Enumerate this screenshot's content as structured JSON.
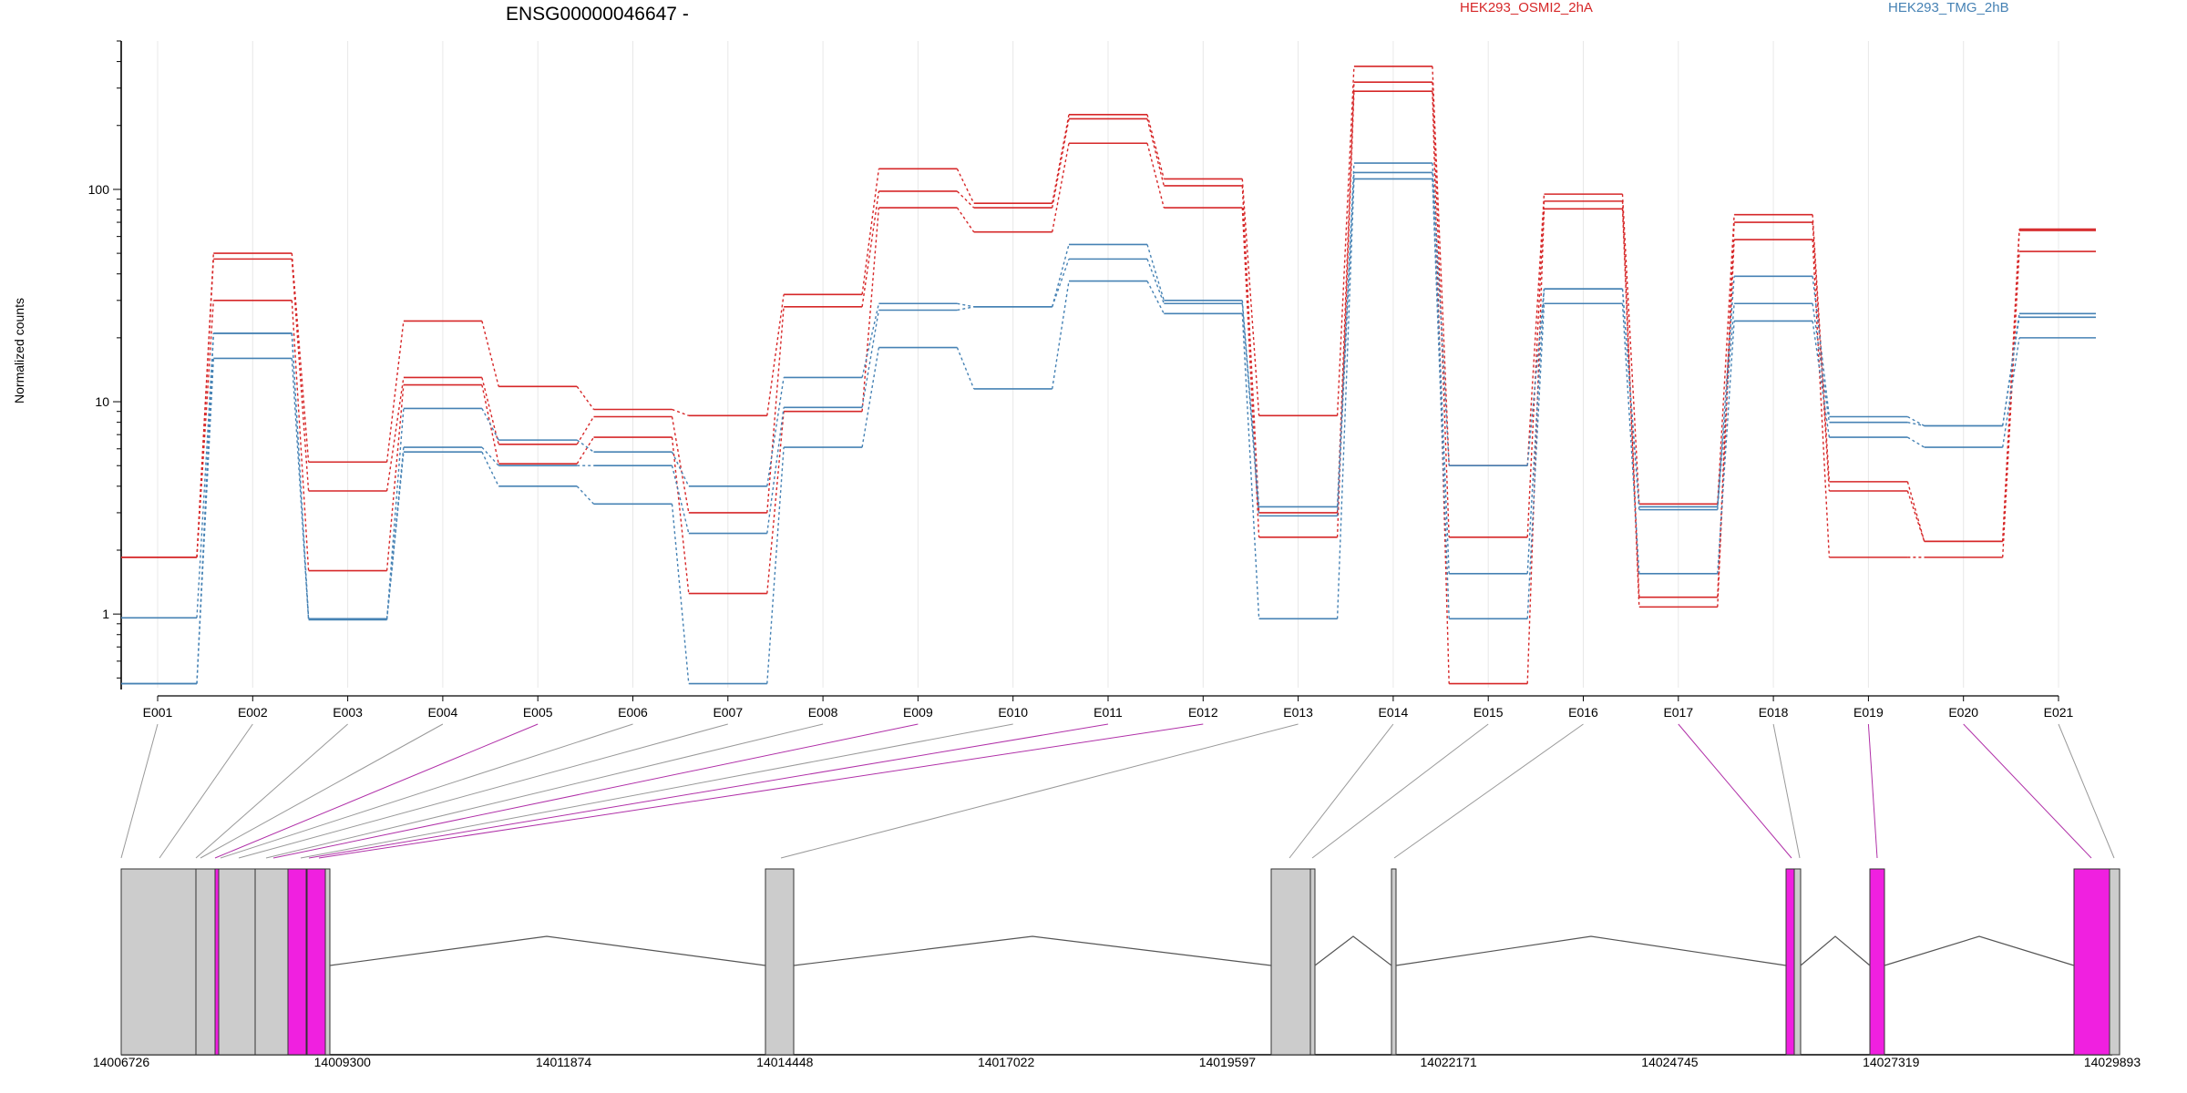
{
  "chart_data": {
    "type": "line",
    "title": "ENSG00000046647 -",
    "ylabel": "Normalized counts",
    "yscale": "log",
    "ylim": [
      0.45,
      500
    ],
    "yticks": [
      1,
      10,
      100
    ],
    "ytick_labels": [
      "1",
      "10",
      "100"
    ],
    "grid": "vertical",
    "categories": [
      "E001",
      "E002",
      "E003",
      "E004",
      "E005",
      "E006",
      "E007",
      "E008",
      "E009",
      "E010",
      "E011",
      "E012",
      "E013",
      "E014",
      "E015",
      "E016",
      "E017",
      "E018",
      "E019",
      "E020",
      "E021"
    ],
    "series": [
      {
        "name": "HEK293_OSMI2_2hA",
        "color": "#d62728",
        "values": [
          1.85,
          50,
          5.2,
          24,
          11.8,
          9.2,
          8.6,
          32,
          125,
          86,
          225,
          112,
          8.6,
          380,
          5.0,
          95,
          3.3,
          76,
          4.2,
          2.2,
          65
        ]
      },
      {
        "name": "HEK293_OSMI2_2hA",
        "color": "#d62728",
        "values": [
          1.85,
          47,
          3.8,
          13,
          6.3,
          8.5,
          3.0,
          28,
          98,
          82,
          215,
          104,
          3.0,
          320,
          2.3,
          88,
          1.2,
          70,
          3.8,
          2.2,
          64
        ]
      },
      {
        "name": "HEK293_OSMI2_2hA",
        "color": "#d62728",
        "values": [
          1.85,
          30,
          1.6,
          12,
          5.1,
          6.8,
          1.25,
          9.0,
          82,
          63,
          165,
          82,
          2.3,
          290,
          0.47,
          81,
          1.08,
          58,
          1.85,
          1.85,
          51
        ]
      },
      {
        "name": "HEK293_TMG_2hB",
        "color": "#4682b4",
        "values": [
          0.96,
          21,
          0.95,
          9.3,
          6.6,
          5.8,
          4.0,
          13,
          29,
          28,
          55,
          30,
          3.2,
          133,
          5.0,
          34,
          3.2,
          39,
          8.5,
          7.7,
          26
        ]
      },
      {
        "name": "HEK293_TMG_2hB",
        "color": "#4682b4",
        "values": [
          0.47,
          21,
          0.95,
          6.1,
          5.0,
          5.0,
          2.4,
          9.4,
          27,
          28,
          47,
          29,
          2.9,
          120,
          1.55,
          34,
          3.1,
          29,
          8.0,
          7.7,
          25
        ]
      },
      {
        "name": "HEK293_TMG_2hB",
        "color": "#4682b4",
        "values": [
          0.47,
          16,
          0.94,
          5.8,
          4.0,
          3.3,
          0.47,
          6.1,
          18,
          11.5,
          37,
          26,
          0.95,
          112,
          0.95,
          29,
          1.55,
          24,
          6.8,
          6.1,
          20
        ]
      }
    ],
    "legend": [
      {
        "label": "HEK293_OSMI2_2hA",
        "color": "#d62728"
      },
      {
        "label": "HEK293_TMG_2hB",
        "color": "#4682b4"
      }
    ],
    "genomic_axis": {
      "range": [
        14006726,
        14029893
      ],
      "tick_labels": [
        "14006726",
        "14009300",
        "14011874",
        "14014448",
        "14017022",
        "14019597",
        "14022171",
        "14024745",
        "14027319",
        "14029893"
      ]
    },
    "exon_colors": {
      "normal": "#cccccc",
      "highlight": "#f020e0"
    },
    "highlighted_exons": [
      "E005",
      "E009",
      "E011",
      "E012",
      "E017",
      "E019",
      "E020"
    ]
  }
}
